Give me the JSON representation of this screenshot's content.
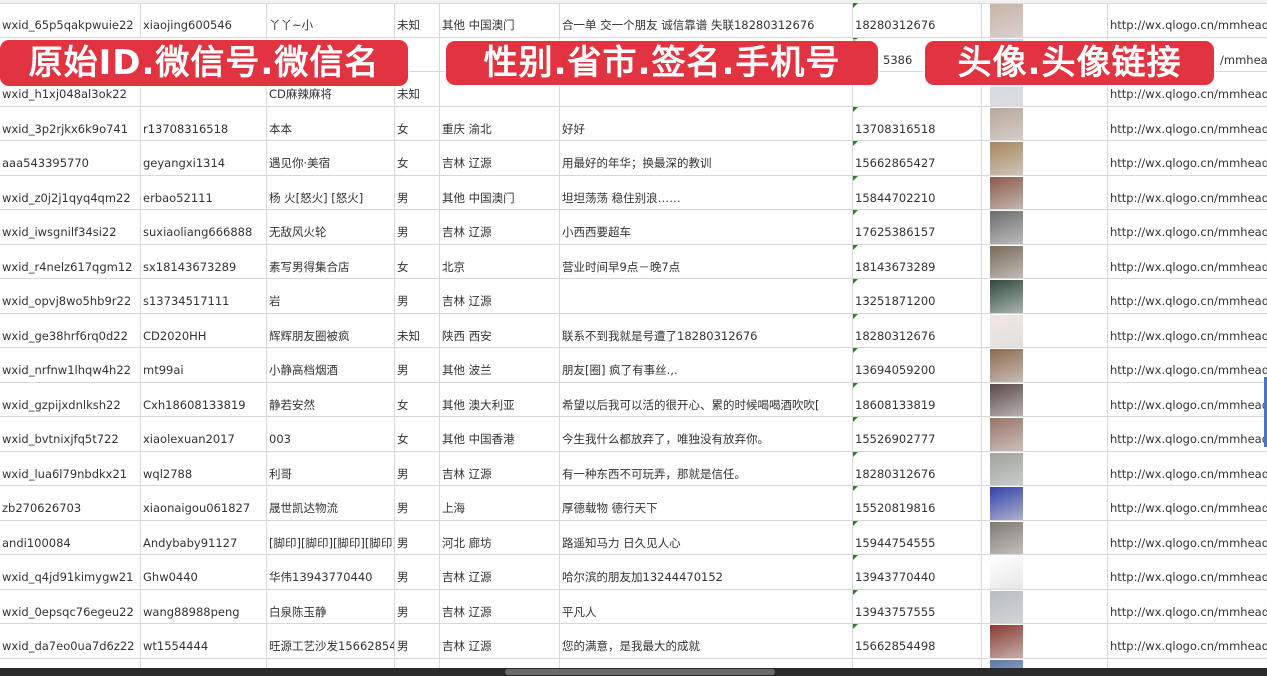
{
  "banners": {
    "left": "原始ID.微信号.微信名",
    "middle": "性别.省市.签名.手机号",
    "right": "头像.头像链接"
  },
  "rows": [
    {
      "id": "wxid_65p5qakpwuie22",
      "wechat": "xiaojing600546",
      "name": "丫丫~小",
      "gender": "未知",
      "region": "其他 中国澳门",
      "signature": "合一单 交一个朋友 诚信靠谱 失联18280312676",
      "phone": "18280312676",
      "avatar_color": "#c9b3a8",
      "url": "http://wx.qlogo.cn/mmhead"
    },
    {
      "id": "",
      "wechat": "",
      "name": "",
      "gender": "",
      "region": "",
      "signature": "",
      "phone": "5386",
      "avatar_color": "#7a8fb8",
      "url": "/mmhead"
    },
    {
      "id": "wxid_h1xj048al3ok22",
      "wechat": "",
      "name": "CD麻辣麻将",
      "gender": "未知",
      "region": "",
      "signature": "",
      "phone": "",
      "avatar_color": "#d5dbe3",
      "url": "http://wx.qlogo.cn/mmhead"
    },
    {
      "id": "wxid_3p2rjkx6k9o741",
      "wechat": "r13708316518",
      "name": "本本",
      "gender": "女",
      "region": "重庆 渝北",
      "signature": "好好",
      "phone": "13708316518",
      "avatar_color": "#b9a89a",
      "url": "http://wx.qlogo.cn/mmhead"
    },
    {
      "id": "aaa543395770",
      "wechat": "geyangxi1314",
      "name": "遇见你·美宿",
      "gender": "女",
      "region": "吉林 辽源",
      "signature": "用最好的年华；换最深的教训",
      "phone": "15662865427",
      "avatar_color": "#a8865e",
      "url": "http://wx.qlogo.cn/mmhead"
    },
    {
      "id": "wxid_z0j2j1qyq4qm22",
      "wechat": "erbao52111",
      "name": "杨 火[怒火] [怒火]",
      "gender": "男",
      "region": "其他 中国澳门",
      "signature": "坦坦荡荡 稳住别浪……",
      "phone": "15844702210",
      "avatar_color": "#8a5a4a",
      "url": "http://wx.qlogo.cn/mmhead"
    },
    {
      "id": "wxid_iwsgnilf34si22",
      "wechat": "suxiaoliang666888",
      "name": "无敌风火轮",
      "gender": "男",
      "region": "吉林 辽源",
      "signature": "小西西要超车",
      "phone": "17625386157",
      "avatar_color": "#6c6c6c",
      "url": "http://wx.qlogo.cn/mmhead"
    },
    {
      "id": "wxid_r4nelz617qgm12",
      "wechat": "sx18143673289",
      "name": "素写男得集合店",
      "gender": "女",
      "region": "北京",
      "signature": "营业时间早9点－晚7点",
      "phone": "18143673289",
      "avatar_color": "#7a6a5a",
      "url": "http://wx.qlogo.cn/mmhead"
    },
    {
      "id": "wxid_opvj8wo5hb9r22",
      "wechat": "s13734517111",
      "name": "岩",
      "gender": "男",
      "region": "吉林 辽源",
      "signature": "",
      "phone": "13251871200",
      "avatar_color": "#2f4a3a",
      "url": "http://wx.qlogo.cn/mmhead"
    },
    {
      "id": "wxid_ge38hrf6rq0d22",
      "wechat": "CD2020HH",
      "name": "辉辉朋友圈被疯",
      "gender": "未知",
      "region": "陕西 西安",
      "signature": "联系不到我就是号遭了18280312676",
      "phone": "18280312676",
      "avatar_color": "#f1e7e2",
      "url": "http://wx.qlogo.cn/mmhead"
    },
    {
      "id": "wxid_nrfnw1lhqw4h22",
      "wechat": "mt99ai",
      "name": "小静高档烟酒",
      "gender": "男",
      "region": "其他 波兰",
      "signature": "朋友[圈] 疯了有事丝.,.",
      "phone": "13694059200",
      "avatar_color": "#8e6a50",
      "url": "http://wx.qlogo.cn/mmhead"
    },
    {
      "id": "wxid_gzpijxdnlksh22",
      "wechat": "Cxh18608133819",
      "name": "静若安然",
      "gender": "女",
      "region": "其他 澳大利亚",
      "signature": "希望以后我可以活的很开心、累的时候喝喝酒吹吹[",
      "phone": "18608133819",
      "avatar_color": "#5a4a48",
      "url": "http://wx.qlogo.cn/mmhead"
    },
    {
      "id": "wxid_bvtnixjfq5t722",
      "wechat": "xiaolexuan2017",
      "name": "003",
      "gender": "女",
      "region": "其他 中国香港",
      "signature": "今生我什么都放弃了，唯独没有放弃你。",
      "phone": "15526902777",
      "avatar_color": "#9a7468",
      "url": "http://wx.qlogo.cn/mmhead"
    },
    {
      "id": "wxid_lua6l79nbdkx21",
      "wechat": "wql2788",
      "name": "利哥",
      "gender": "男",
      "region": "吉林 辽源",
      "signature": "有一种东西不可玩弄，那就是信任。",
      "phone": "18280312676",
      "avatar_color": "#9ea39a",
      "url": "http://wx.qlogo.cn/mmhead"
    },
    {
      "id": "zb270626703",
      "wechat": "xiaonaigou061827",
      "name": "晟世凯达物流",
      "gender": "男",
      "region": "上海",
      "signature": "厚德载物 德行天下",
      "phone": "15520819816",
      "avatar_color": "#3340a8",
      "url": "http://wx.qlogo.cn/mmhead"
    },
    {
      "id": "andi100084",
      "wechat": "Andybaby91127",
      "name": "[脚印][脚印][脚印][脚印]",
      "gender": "男",
      "region": "河北 廊坊",
      "signature": "路遥知马力 日久见人心",
      "phone": "15944754555",
      "avatar_color": "#807a72",
      "url": "http://wx.qlogo.cn/mmhead"
    },
    {
      "id": "wxid_q4jd91kimygw21",
      "wechat": "Ghw0440",
      "name": "华伟13943770440",
      "gender": "男",
      "region": "吉林 辽源",
      "signature": "哈尔滨的朋友加13244470152",
      "phone": "13943770440",
      "avatar_color": "#ffffff",
      "url": "http://wx.qlogo.cn/mmhead"
    },
    {
      "id": "wxid_0epsqc76egeu22",
      "wechat": "wang88988peng",
      "name": "白泉陈玉静",
      "gender": "男",
      "region": "吉林 辽源",
      "signature": "平凡人",
      "phone": "13943757555",
      "avatar_color": "#b8bec4",
      "url": "http://wx.qlogo.cn/mmhead"
    },
    {
      "id": "wxid_da7eo0ua7d6z22",
      "wechat": "wt1554444",
      "name": "旺源工艺沙发15662854",
      "gender": "男",
      "region": "吉林 辽源",
      "signature": "您的满意，是我最大的成就",
      "phone": "15662854498",
      "avatar_color": "#8a3a30",
      "url": "http://wx.qlogo.cn/mmhead"
    },
    {
      "id": "",
      "wechat": "",
      "name": "",
      "gender": "",
      "region": "",
      "signature": "",
      "phone": "",
      "avatar_color": "#5a78a8",
      "url": ""
    }
  ],
  "colors": {
    "banner": "#e23340",
    "grid": "#d8d8d8",
    "flag": "#2e7d32"
  }
}
